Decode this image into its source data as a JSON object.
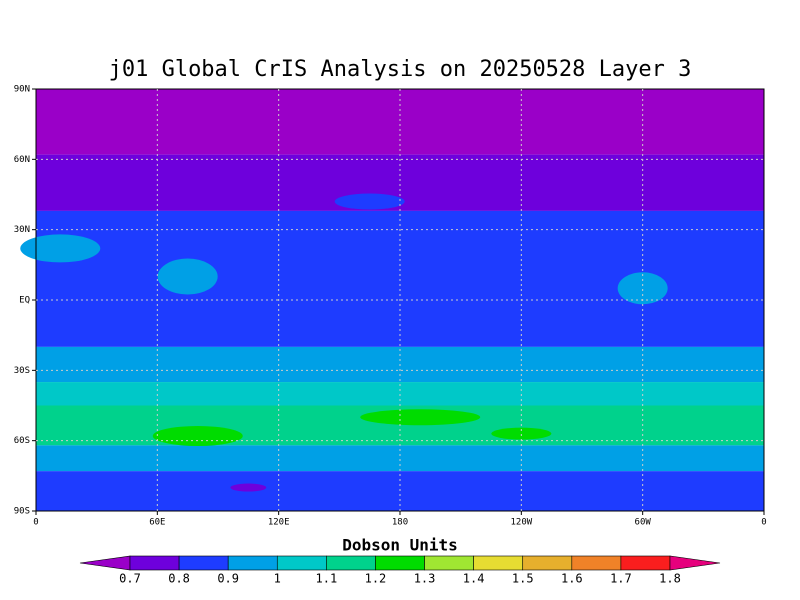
{
  "chart_data": {
    "type": "contour_map",
    "title": "j01 Global CrIS Analysis on 20250528 Layer 3",
    "xlim": [
      0,
      360
    ],
    "xticks": [
      0,
      {
        "value": 60,
        "label": "60E"
      },
      {
        "value": 120,
        "label": "120E"
      },
      180,
      {
        "value": 240,
        "label": "120W"
      },
      {
        "value": 300,
        "label": "60W"
      },
      {
        "value": 360,
        "label": "0"
      }
    ],
    "ylim": [
      -90,
      90
    ],
    "yticks": [
      {
        "value": -90,
        "label": "90S"
      },
      {
        "value": -60,
        "label": "60S"
      },
      {
        "value": -30,
        "label": "30S"
      },
      {
        "value": 0,
        "label": "EQ"
      },
      {
        "value": 30,
        "label": "30N"
      },
      {
        "value": 60,
        "label": "60N"
      },
      {
        "value": 90,
        "label": "90N"
      }
    ],
    "grid": true,
    "colorbar": {
      "label": "Dobson Units",
      "levels": [
        0.7,
        0.8,
        0.9,
        1,
        1.1,
        1.2,
        1.3,
        1.4,
        1.5,
        1.6,
        1.7,
        1.8
      ],
      "colors": [
        "#9a00c8",
        "#6e00dc",
        "#1e3cff",
        "#00a0e6",
        "#00c8c8",
        "#00d28c",
        "#00dc00",
        "#a0e632",
        "#e6dc32",
        "#e6af2d",
        "#f08228",
        "#fa1e1e",
        "#e6007d"
      ]
    }
  }
}
